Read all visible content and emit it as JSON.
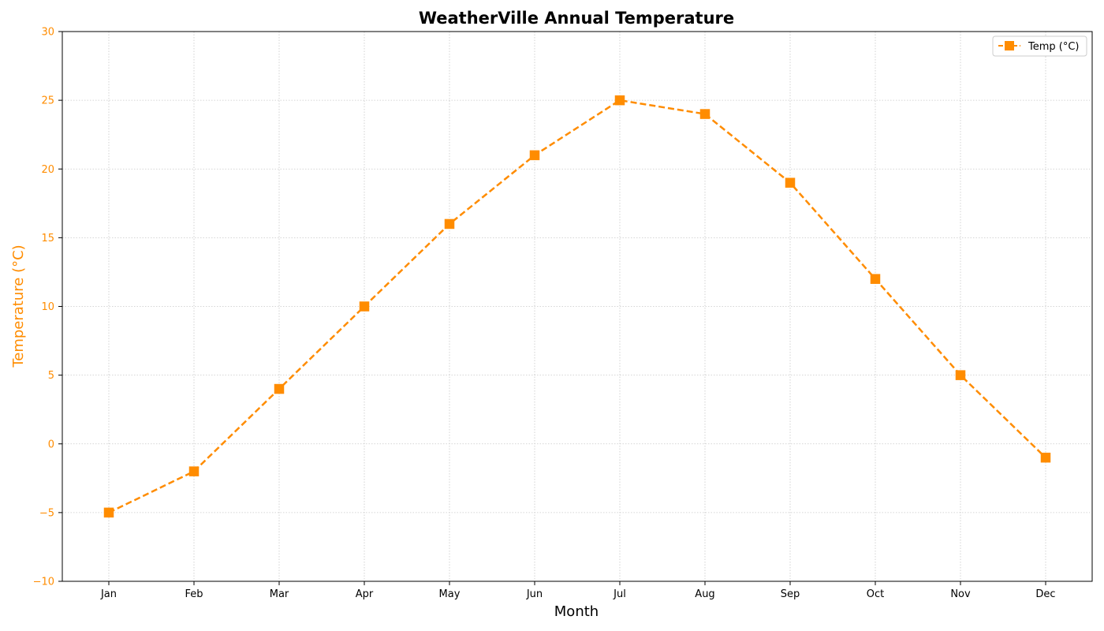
{
  "chart_data": {
    "type": "line",
    "title": "WeatherVille Annual Temperature",
    "xlabel": "Month",
    "ylabel": "Temperature (°C)",
    "categories": [
      "Jan",
      "Feb",
      "Mar",
      "Apr",
      "May",
      "Jun",
      "Jul",
      "Aug",
      "Sep",
      "Oct",
      "Nov",
      "Dec"
    ],
    "series": [
      {
        "name": "Temp (°C)",
        "values": [
          -5,
          -2,
          4,
          10,
          16,
          21,
          25,
          24,
          19,
          12,
          5,
          -1
        ],
        "color": "#ff8c00",
        "marker": "square",
        "line_style": "dashed"
      }
    ],
    "ylim": [
      -10,
      30
    ],
    "yticks": [
      -10,
      -5,
      0,
      5,
      10,
      15,
      20,
      25,
      30
    ],
    "ytick_labels": [
      "−10",
      "−5",
      "0",
      "5",
      "10",
      "15",
      "20",
      "25",
      "30"
    ],
    "grid": true,
    "legend_position": "top-right",
    "y_axis_color": "#ff8c00"
  }
}
